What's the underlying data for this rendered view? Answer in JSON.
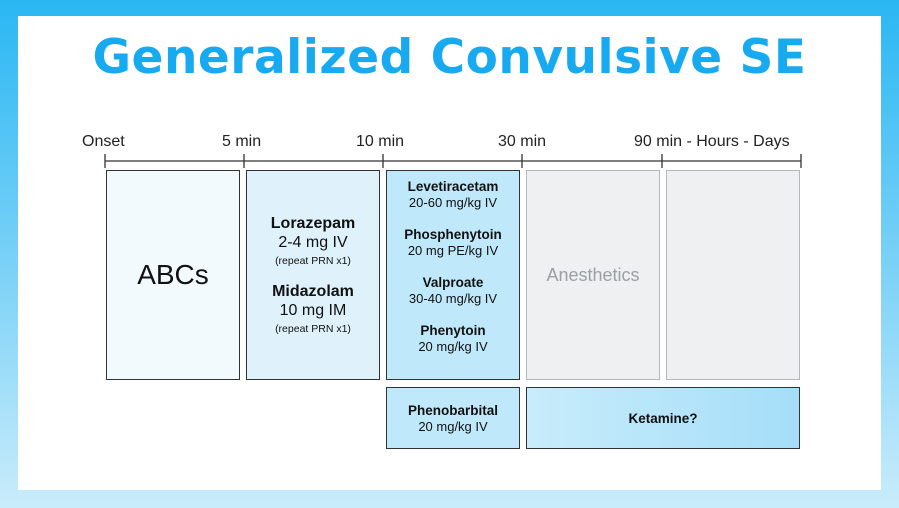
{
  "title": "Generalized Convulsive SE",
  "timeline": {
    "ticks": [
      "Onset",
      "5 min",
      "10 min",
      "30 min",
      "90 min - Hours - Days"
    ]
  },
  "abcs": {
    "label": "ABCs"
  },
  "first_line": [
    {
      "drug": "Lorazepam",
      "dose": "2-4 mg IV",
      "note": "(repeat PRN x1)"
    },
    {
      "drug": "Midazolam",
      "dose": "10 mg IM",
      "note": "(repeat PRN x1)"
    }
  ],
  "second_line": [
    {
      "drug": "Levetiracetam",
      "dose": "20-60 mg/kg IV"
    },
    {
      "drug": "Phosphenytoin",
      "dose": "20 mg PE/kg IV"
    },
    {
      "drug": "Valproate",
      "dose": "30-40 mg/kg IV"
    },
    {
      "drug": "Phenytoin",
      "dose": "20 mg/kg IV"
    }
  ],
  "anesthetics": {
    "label": "Anesthetics"
  },
  "phenobarbital": {
    "drug": "Phenobarbital",
    "dose": "20 mg/kg IV"
  },
  "ketamine": {
    "label": "Ketamine?"
  },
  "colors": {
    "title": "#18aaf0",
    "frame": "#2ab7f3",
    "second_line_fill": "#bfe8fb",
    "anesthetic_fill": "#eef0f2"
  }
}
